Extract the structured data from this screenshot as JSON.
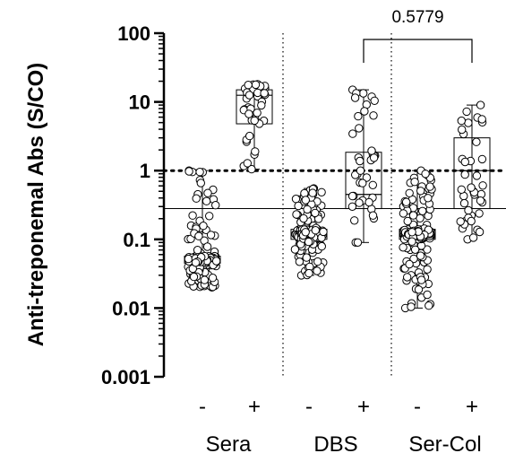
{
  "chart_data": {
    "type": "box",
    "ylabel": "Anti-treponemal Abs (S/CO)",
    "yscale": "log",
    "ylim": [
      0.001,
      100
    ],
    "yticks": [
      "100",
      "10",
      "1",
      "0.1",
      "0.01",
      "0.001"
    ],
    "groups": [
      {
        "name": "Sera",
        "categories": [
          "-",
          "+"
        ]
      },
      {
        "name": "DBS",
        "categories": [
          "-",
          "+"
        ]
      },
      {
        "name": "Ser-Col",
        "categories": [
          "-",
          "+"
        ]
      }
    ],
    "boxes": [
      {
        "group": "Sera",
        "category": "-",
        "min": 0.02,
        "q1": 0.045,
        "median": 0.05,
        "q3": 0.057,
        "max": 1.0
      },
      {
        "group": "Sera",
        "category": "+",
        "min": 1.05,
        "q1": 4.8,
        "median": 12.5,
        "q3": 15.0,
        "max": 18.0
      },
      {
        "group": "DBS",
        "category": "-",
        "min": 0.03,
        "q1": 0.1,
        "median": 0.12,
        "q3": 0.14,
        "max": 0.55
      },
      {
        "group": "DBS",
        "category": "+",
        "min": 0.09,
        "q1": 0.28,
        "median": 0.45,
        "q3": 1.85,
        "max": 15.0
      },
      {
        "group": "Ser-Col",
        "category": "-",
        "min": 0.01,
        "q1": 0.1,
        "median": 0.12,
        "q3": 0.14,
        "max": 1.0
      },
      {
        "group": "Ser-Col",
        "category": "+",
        "min": 0.1,
        "q1": 0.28,
        "median": 1.0,
        "q3": 3.0,
        "max": 9.0
      }
    ],
    "reference_lines": [
      {
        "y": 1.0,
        "style": "dotted"
      },
      {
        "y": 0.28,
        "style": "solid"
      }
    ],
    "group_separators": "dotted vertical lines",
    "comparison": {
      "from": "DBS +",
      "to": "Ser-Col +",
      "label": "0.5779"
    }
  }
}
